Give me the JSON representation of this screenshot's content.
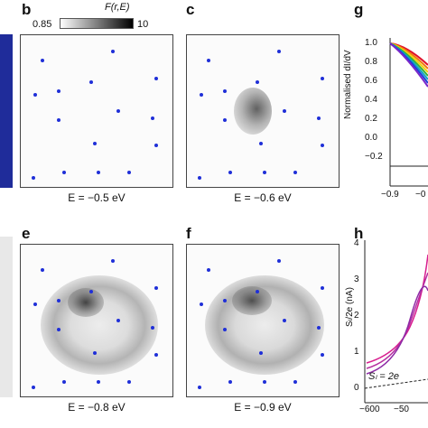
{
  "panels": {
    "b": {
      "label": "b",
      "caption": "E = −0.5 eV"
    },
    "c": {
      "label": "c",
      "caption": "E = −0.6 eV"
    },
    "e": {
      "label": "e",
      "caption": "E = −0.8 eV"
    },
    "f": {
      "label": "f",
      "caption": "E = −0.9 eV"
    },
    "g": {
      "label": "g"
    },
    "h": {
      "label": "h"
    }
  },
  "colorbar": {
    "title": "F(r,E)",
    "min_label": "0.85",
    "max_label": "10",
    "gradient": [
      "#ffffff",
      "#000000"
    ]
  },
  "dot_color": "#1f2fd8",
  "edge_strip_color": "#1f2c9a",
  "panel_g": {
    "ylabel": "Normalised dI/dV",
    "yticks": [
      "1.0",
      "0.8",
      "0.6",
      "0.4",
      "0.2",
      "0.0",
      "−0.2"
    ],
    "xticks": [
      "−0.9",
      "−0"
    ],
    "curve_colors": [
      "#e0102a",
      "#f07a10",
      "#f2d311",
      "#35b334",
      "#10a7c5",
      "#1f3fd9",
      "#7a26c9"
    ]
  },
  "panel_h": {
    "ylabel": "Sₗ/2e (nA)",
    "yticks": [
      "4",
      "3",
      "2",
      "1",
      "0"
    ],
    "xticks": [
      "−600",
      "−50"
    ],
    "annotation": "Sₗ = 2e",
    "curve_colors": [
      "#d81e8f",
      "#b52ea0",
      "#8e2aa6"
    ]
  }
}
